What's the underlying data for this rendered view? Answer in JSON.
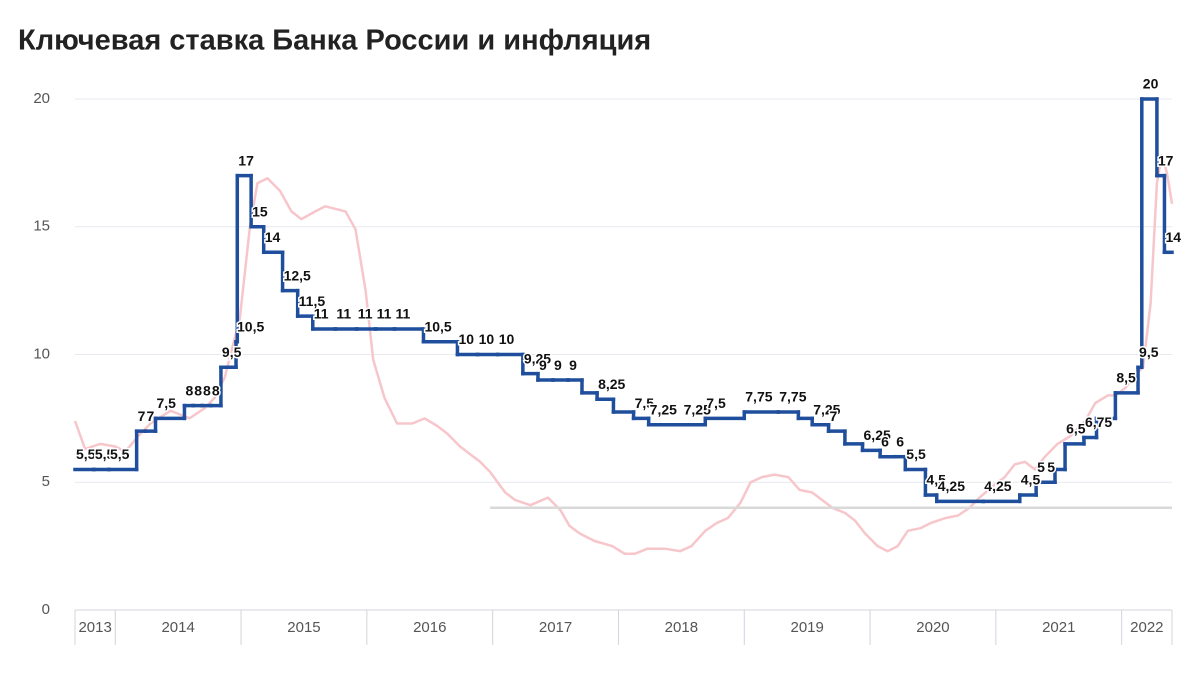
{
  "chart_data": {
    "type": "line",
    "title": "Ключевая ставка Банка России и инфляция",
    "xlim": [
      2013.68,
      2022.4
    ],
    "xticks": [
      {
        "value": 2013,
        "label": "2013"
      },
      {
        "value": 2014,
        "label": "2014"
      },
      {
        "value": 2015,
        "label": "2015"
      },
      {
        "value": 2016,
        "label": "2016"
      },
      {
        "value": 2017,
        "label": "2017"
      },
      {
        "value": 2018,
        "label": "2018"
      },
      {
        "value": 2019,
        "label": "2019"
      },
      {
        "value": 2020,
        "label": "2020"
      },
      {
        "value": 2021,
        "label": "2021"
      },
      {
        "value": 2022,
        "label": "2022"
      }
    ],
    "ylim": [
      0,
      20
    ],
    "yticks": [
      0,
      5,
      10,
      15,
      20
    ],
    "grid": true,
    "series": [
      {
        "color": "#f7c6cb",
        "x": [
          2013.68,
          2013.76,
          2013.88,
          2014.0,
          2014.08,
          2014.2,
          2014.28,
          2014.44,
          2014.59,
          2014.71,
          2014.79,
          2014.87,
          2014.99,
          2015.07,
          2015.13,
          2015.21,
          2015.31,
          2015.4,
          2015.48,
          2015.59,
          2015.67,
          2015.83,
          2015.91,
          2015.99,
          2016.05,
          2016.14,
          2016.24,
          2016.36,
          2016.46,
          2016.56,
          2016.64,
          2016.74,
          2016.9,
          2016.98,
          2017.1,
          2017.18,
          2017.3,
          2017.44,
          2017.54,
          2017.61,
          2017.69,
          2017.81,
          2017.95,
          2018.05,
          2018.13,
          2018.23,
          2018.37,
          2018.49,
          2018.58,
          2018.69,
          2018.78,
          2018.87,
          2018.97,
          2019.05,
          2019.14,
          2019.24,
          2019.35,
          2019.44,
          2019.54,
          2019.62,
          2019.7,
          2019.8,
          2019.88,
          2019.96,
          2020.06,
          2020.14,
          2020.22,
          2020.3,
          2020.4,
          2020.48,
          2020.6,
          2020.7,
          2020.79,
          2020.87,
          2020.99,
          2021.07,
          2021.15,
          2021.23,
          2021.31,
          2021.39,
          2021.49,
          2021.59,
          2021.71,
          2021.79,
          2021.89,
          2021.95,
          2022.03,
          2022.11,
          2022.17,
          2022.23,
          2022.28,
          2022.32,
          2022.36,
          2022.4
        ],
        "values": [
          7.4,
          6.3,
          6.5,
          6.4,
          6.2,
          6.9,
          7.3,
          7.8,
          7.5,
          7.9,
          8.3,
          9.1,
          11.4,
          15,
          16.7,
          16.9,
          16.4,
          15.6,
          15.3,
          15.6,
          15.8,
          15.6,
          14.9,
          12.5,
          9.8,
          8.3,
          7.3,
          7.3,
          7.5,
          7.2,
          6.9,
          6.4,
          5.8,
          5.4,
          4.6,
          4.3,
          4.1,
          4.4,
          3.9,
          3.3,
          3.0,
          2.7,
          2.5,
          2.2,
          2.2,
          2.4,
          2.4,
          2.3,
          2.5,
          3.1,
          3.4,
          3.6,
          4.2,
          5.0,
          5.2,
          5.3,
          5.2,
          4.7,
          4.6,
          4.3,
          4.0,
          3.8,
          3.5,
          3.0,
          2.5,
          2.3,
          2.5,
          3.1,
          3.2,
          3.4,
          3.6,
          3.7,
          4.0,
          4.4,
          4.9,
          5.2,
          5.7,
          5.8,
          5.5,
          6.0,
          6.5,
          6.8,
          7.4,
          8.1,
          8.4,
          8.4,
          8.7,
          9.2,
          9.5,
          12,
          16.7,
          17.8,
          17.1,
          15.9
        ]
      },
      {
        "color": "#d9d9d9",
        "x": [
          2016.98,
          2022.4
        ],
        "values": [
          4,
          4
        ]
      },
      {
        "color": "#1f4e9c",
        "step": true,
        "x": [
          2013.68,
          2013.83,
          2013.95,
          2014.17,
          2014.24,
          2014.32,
          2014.55,
          2014.62,
          2014.69,
          2014.76,
          2014.84,
          2014.96,
          2014.97,
          2015.08,
          2015.18,
          2015.33,
          2015.45,
          2015.57,
          2015.75,
          2015.92,
          2016.07,
          2016.22,
          2016.45,
          2016.72,
          2016.88,
          2017.04,
          2017.24,
          2017.36,
          2017.48,
          2017.6,
          2017.71,
          2017.83,
          2017.96,
          2018.12,
          2018.24,
          2018.51,
          2018.69,
          2019.0,
          2019.27,
          2019.43,
          2019.54,
          2019.67,
          2019.8,
          2019.94,
          2020.08,
          2020.2,
          2020.28,
          2020.44,
          2020.53,
          2020.9,
          2021.19,
          2021.32,
          2021.4,
          2021.47,
          2021.55,
          2021.7,
          2021.8,
          2021.95,
          2022.13,
          2022.16,
          2022.28,
          2022.34
        ],
        "values": [
          5.5,
          5.5,
          5.5,
          7,
          7,
          7.5,
          8,
          8,
          8,
          8,
          9.5,
          10.5,
          17,
          15,
          14,
          12.5,
          11.5,
          11,
          11,
          11,
          11,
          11,
          10.5,
          10,
          10,
          10,
          9.25,
          9,
          9,
          9,
          8.5,
          8.25,
          7.75,
          7.5,
          7.25,
          7.25,
          7.5,
          7.75,
          7.75,
          7.5,
          7.25,
          7,
          6.5,
          6.25,
          6,
          6,
          5.5,
          4.5,
          4.25,
          4.25,
          4.5,
          5,
          5,
          5.5,
          6.5,
          6.75,
          7.5,
          8.5,
          9.5,
          20,
          17,
          14
        ],
        "value_labels": [
          "5,5",
          "5,5",
          "5,5",
          "7",
          "7",
          "7,5",
          "8",
          "8",
          "8",
          "8",
          "9,5",
          "10,5",
          "17",
          "15",
          "14",
          "12,5",
          "11,5",
          "11",
          "11",
          "11",
          "11",
          "11",
          "10,5",
          "10",
          "10",
          "10",
          "9,25",
          "9",
          "9",
          "9",
          null,
          "8,25",
          null,
          "7,5",
          "7,25",
          "7,25",
          "7,5",
          "7,75",
          "7,75",
          null,
          "7,25",
          "7",
          null,
          "6,25",
          "6",
          "6",
          "5,5",
          "4,5",
          "4,25",
          "4,25",
          "4,5",
          "5",
          "5",
          null,
          "6,5",
          "6,75",
          null,
          "8,5",
          "9,5",
          "20",
          "17",
          "14"
        ]
      }
    ]
  }
}
